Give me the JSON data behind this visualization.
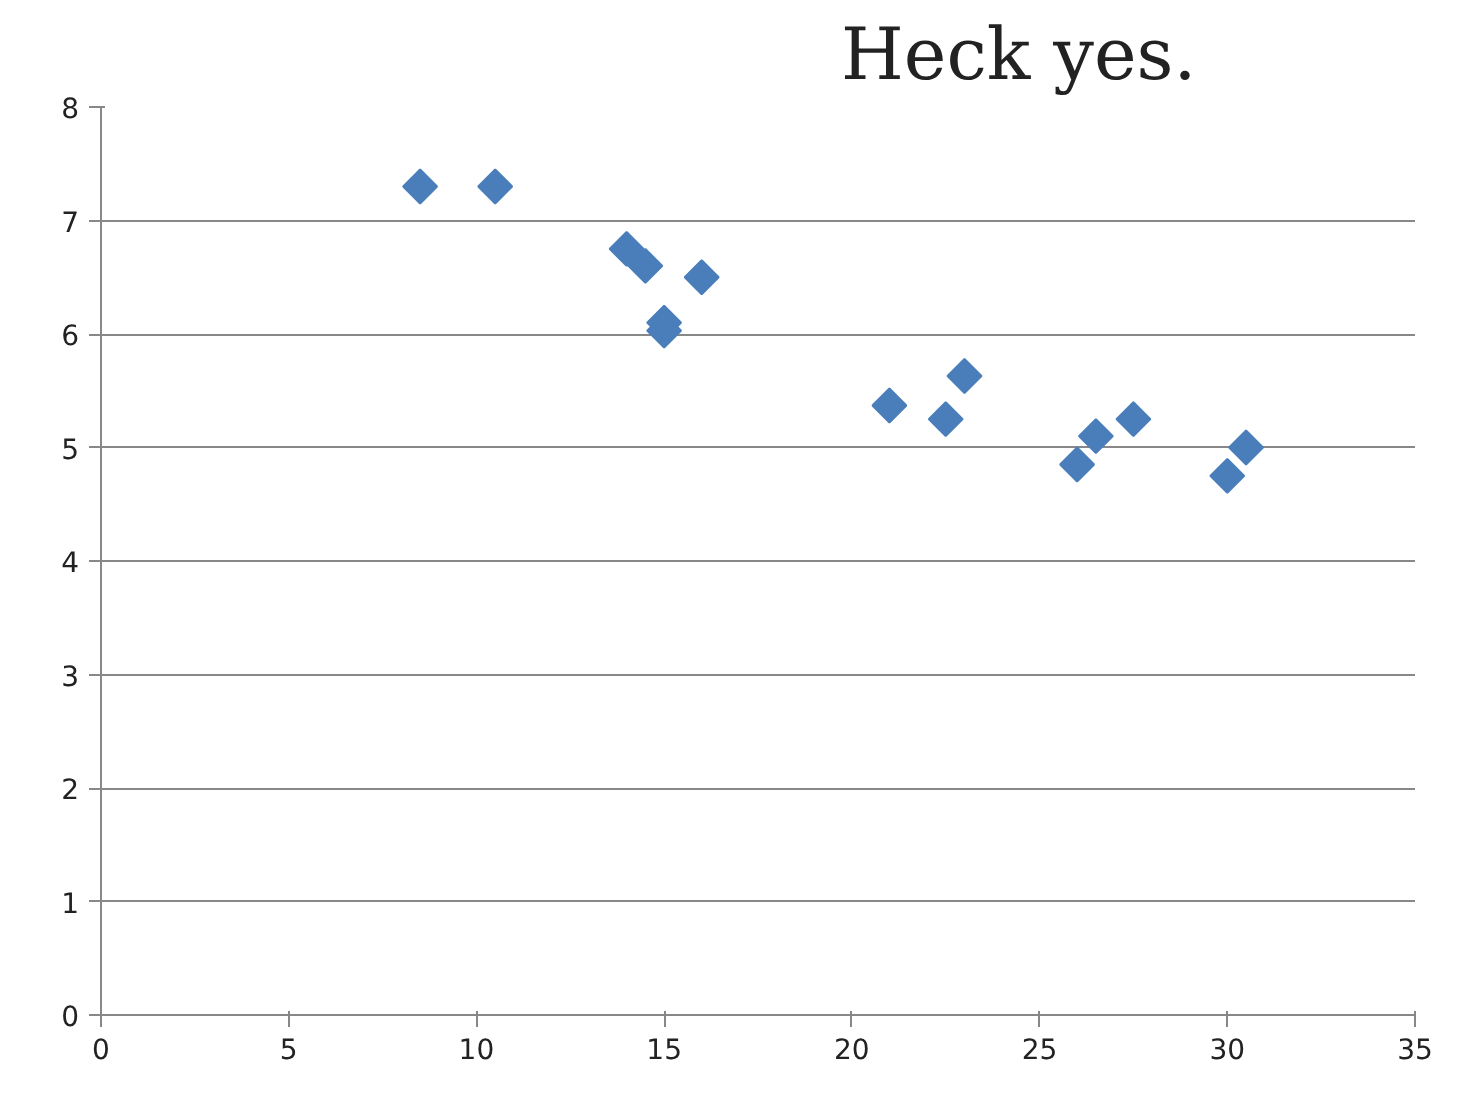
{
  "chart_data": {
    "type": "scatter",
    "annotations": [
      "Heck yes."
    ],
    "x": [
      8.5,
      10.5,
      14,
      14.5,
      15,
      15,
      16,
      21,
      22.5,
      23,
      26,
      26.5,
      27.5,
      30,
      30.5
    ],
    "values": [
      7.3,
      7.3,
      6.75,
      6.6,
      6.1,
      6.03,
      6.5,
      5.37,
      5.25,
      5.63,
      4.85,
      5.1,
      5.25,
      4.75,
      5.0
    ],
    "color": "#4a7ebb",
    "marker": "diamond",
    "xlim": [
      0,
      35
    ],
    "ylim": [
      0,
      8
    ],
    "xticks": [
      0,
      5,
      10,
      15,
      20,
      25,
      30,
      35
    ],
    "yticks": [
      0,
      1,
      2,
      3,
      4,
      5,
      6,
      7,
      8
    ],
    "grid": "y"
  }
}
